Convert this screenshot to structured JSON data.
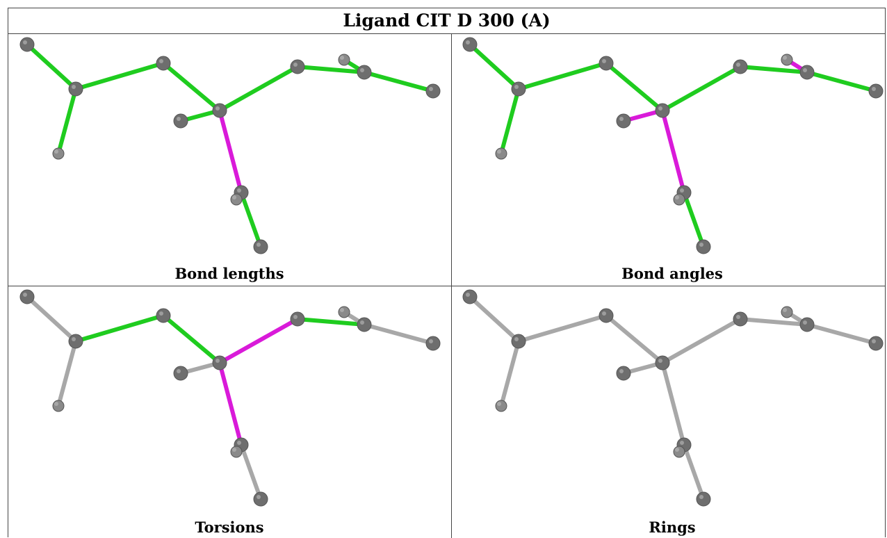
{
  "title": "Ligand CIT D 300 (A)",
  "colors": {
    "ok": "#1fcc1f",
    "ok_dark": "#17a817",
    "outlier": "#d91ad9",
    "neutral": "#a8a8a8",
    "atom": "#6e6e6e"
  },
  "panels": [
    {
      "caption": "Bond lengths",
      "bonds": [
        "ok",
        "ok",
        "ok",
        "ok",
        "ok",
        "ok",
        "ok",
        "outlier",
        "ok",
        "ok",
        "ok"
      ]
    },
    {
      "caption": "Bond angles",
      "bonds": [
        "ok",
        "ok",
        "ok",
        "ok",
        "ok",
        "ok",
        "outlier",
        "outlier",
        "outlier",
        "ok",
        "ok"
      ]
    },
    {
      "caption": "Torsions",
      "bonds": [
        "neutral",
        "neutral",
        "ok",
        "ok",
        "outlier",
        "ok",
        "neutral",
        "outlier",
        "neutral",
        "neutral",
        "neutral"
      ]
    },
    {
      "caption": "Rings",
      "bonds": [
        "neutral",
        "neutral",
        "neutral",
        "neutral",
        "neutral",
        "neutral",
        "neutral",
        "neutral",
        "neutral",
        "neutral",
        "neutral"
      ]
    }
  ]
}
